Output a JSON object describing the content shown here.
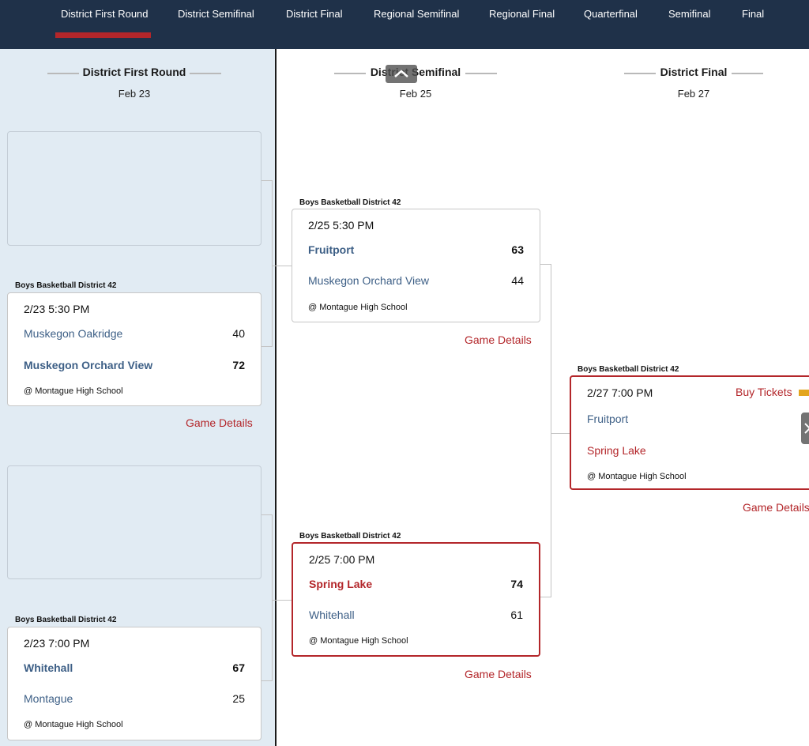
{
  "nav": {
    "tabs": [
      {
        "label": "District First Round",
        "active": true
      },
      {
        "label": "District Semifinal"
      },
      {
        "label": "District Final"
      },
      {
        "label": "Regional Semifinal"
      },
      {
        "label": "Regional Final"
      },
      {
        "label": "Quarterfinal"
      },
      {
        "label": "Semifinal"
      },
      {
        "label": "Final"
      }
    ],
    "active_color": "#b3262a",
    "background": "#1f3149"
  },
  "columns": [
    {
      "title": "District First Round",
      "date": "Feb 23"
    },
    {
      "title": "District Semifinal",
      "date": "Feb 25"
    },
    {
      "title": "District Final",
      "date": "Feb 27"
    }
  ],
  "games": {
    "r1_g1": {
      "label": "Boys Basketball District 42",
      "time": "2/23 5:30 PM",
      "team1": "Muskegon Oakridge",
      "score1": "40",
      "team2": "Muskegon Orchard View",
      "score2": "72",
      "venue": "@ Montague High School",
      "details": "Game Details"
    },
    "r1_g2": {
      "label": "Boys Basketball District 42",
      "time": "2/23 7:00 PM",
      "team1": "Whitehall",
      "score1": "67",
      "team2": "Montague",
      "score2": "25",
      "venue": "@ Montague High School"
    },
    "r2_g1": {
      "label": "Boys Basketball District 42",
      "time": "2/25 5:30 PM",
      "team1": "Fruitport",
      "score1": "63",
      "team2": "Muskegon Orchard View",
      "score2": "44",
      "venue": "@ Montague High School",
      "details": "Game Details"
    },
    "r2_g2": {
      "label": "Boys Basketball District 42",
      "time": "2/25 7:00 PM",
      "team1": "Spring Lake",
      "score1": "74",
      "team2": "Whitehall",
      "score2": "61",
      "venue": "@ Montague High School",
      "details": "Game Details"
    },
    "r3_g1": {
      "label": "Boys Basketball District 42",
      "time": "2/27 7:00 PM",
      "team1": "Fruitport",
      "team2": "Spring Lake",
      "venue": "@ Montague High School",
      "buy": "Buy Tickets",
      "details": "Game Details"
    }
  },
  "icons": {
    "scroll_up": "chevron-up-icon",
    "scroll_right": "chevron-right-icon",
    "ticket": "ticket-icon"
  }
}
